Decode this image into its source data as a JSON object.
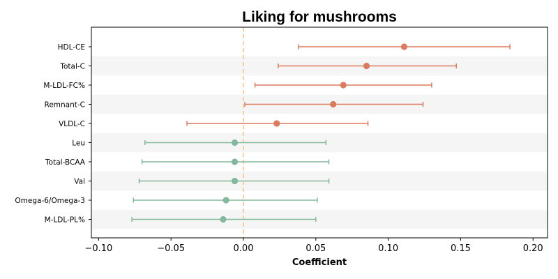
{
  "chart_data": {
    "type": "scatter",
    "title": "Liking for mushrooms",
    "xlabel": "Coefficient",
    "ylabel": "",
    "xlim": [
      -0.105,
      0.21
    ],
    "xticks": [
      -0.1,
      -0.05,
      0.0,
      0.05,
      0.1,
      0.15,
      0.2
    ],
    "xtick_labels": [
      "−0.10",
      "−0.05",
      "0.00",
      "0.05",
      "0.10",
      "0.15",
      "0.20"
    ],
    "reference_line": {
      "x": 0.0,
      "style": "dashed",
      "color": "#F0C890"
    },
    "row_striping": true,
    "colors": {
      "positive": "#DA7A5E",
      "negative": "#84B89C"
    },
    "rows": [
      {
        "label": "HDL-CE",
        "estimate": 0.111,
        "ci_low": 0.038,
        "ci_high": 0.184,
        "group": "positive"
      },
      {
        "label": "Total-C",
        "estimate": 0.085,
        "ci_low": 0.024,
        "ci_high": 0.147,
        "group": "positive"
      },
      {
        "label": "M-LDL-FC%",
        "estimate": 0.069,
        "ci_low": 0.008,
        "ci_high": 0.13,
        "group": "positive"
      },
      {
        "label": "Remnant-C",
        "estimate": 0.062,
        "ci_low": 0.001,
        "ci_high": 0.124,
        "group": "positive"
      },
      {
        "label": "VLDL-C",
        "estimate": 0.023,
        "ci_low": -0.039,
        "ci_high": 0.086,
        "group": "positive"
      },
      {
        "label": "Leu",
        "estimate": -0.006,
        "ci_low": -0.068,
        "ci_high": 0.057,
        "group": "negative"
      },
      {
        "label": "Total-BCAA",
        "estimate": -0.006,
        "ci_low": -0.07,
        "ci_high": 0.059,
        "group": "negative"
      },
      {
        "label": "Val",
        "estimate": -0.006,
        "ci_low": -0.072,
        "ci_high": 0.059,
        "group": "negative"
      },
      {
        "label": "Omega-6/Omega-3",
        "estimate": -0.012,
        "ci_low": -0.076,
        "ci_high": 0.051,
        "group": "negative"
      },
      {
        "label": "M-LDL-PL%",
        "estimate": -0.014,
        "ci_low": -0.077,
        "ci_high": 0.05,
        "group": "negative"
      }
    ]
  }
}
